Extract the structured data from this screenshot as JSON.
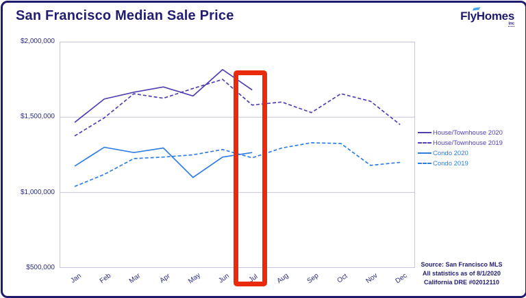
{
  "header": {
    "title": "San Francisco Median Sale Price",
    "logo": {
      "text": "FlyHomes",
      "suffix": "inc",
      "accent_color": "#4da3e8"
    }
  },
  "chart_data": {
    "type": "line",
    "title": "San Francisco Median Sale Price",
    "categories": [
      "Jan",
      "Feb",
      "Mar",
      "Apr",
      "May",
      "Jun",
      "Jul",
      "Aug",
      "Sep",
      "Oct",
      "Nov",
      "Dec"
    ],
    "y_axis": {
      "tick_labels": [
        "$2,000,000",
        "$1,500,000",
        "$1,000,000",
        "$500,000"
      ],
      "tick_values": [
        2000000,
        1500000,
        1000000,
        500000
      ],
      "min": 500000,
      "max": 2000000
    },
    "grid": true,
    "legend_position": "right",
    "series": [
      {
        "name": "House/Townhouse 2020",
        "style": "solid",
        "color": "#4e3fb3",
        "values": [
          1465000,
          1620000,
          1665000,
          1700000,
          1640000,
          1815000,
          1680000
        ]
      },
      {
        "name": "House/Townhouse 2019",
        "style": "dashed",
        "color": "#4e3fb3",
        "values": [
          1375000,
          1495000,
          1655000,
          1625000,
          1690000,
          1750000,
          1580000,
          1600000,
          1530000,
          1655000,
          1605000,
          1450000
        ]
      },
      {
        "name": "Condo 2020",
        "style": "solid",
        "color": "#2e7ee2",
        "values": [
          1175000,
          1300000,
          1265000,
          1295000,
          1100000,
          1235000,
          1265000
        ]
      },
      {
        "name": "Condo 2019",
        "style": "dashed",
        "color": "#2e7ee2",
        "values": [
          1040000,
          1120000,
          1225000,
          1235000,
          1250000,
          1285000,
          1230000,
          1295000,
          1330000,
          1325000,
          1180000,
          1200000
        ]
      }
    ],
    "highlight": {
      "category": "Jul",
      "color": "#ea2a0c"
    }
  },
  "footer": {
    "source_lines": [
      "Source: San Francisco MLS",
      "All statistics as of 8/1/2020",
      "California DRE #02012110"
    ]
  }
}
